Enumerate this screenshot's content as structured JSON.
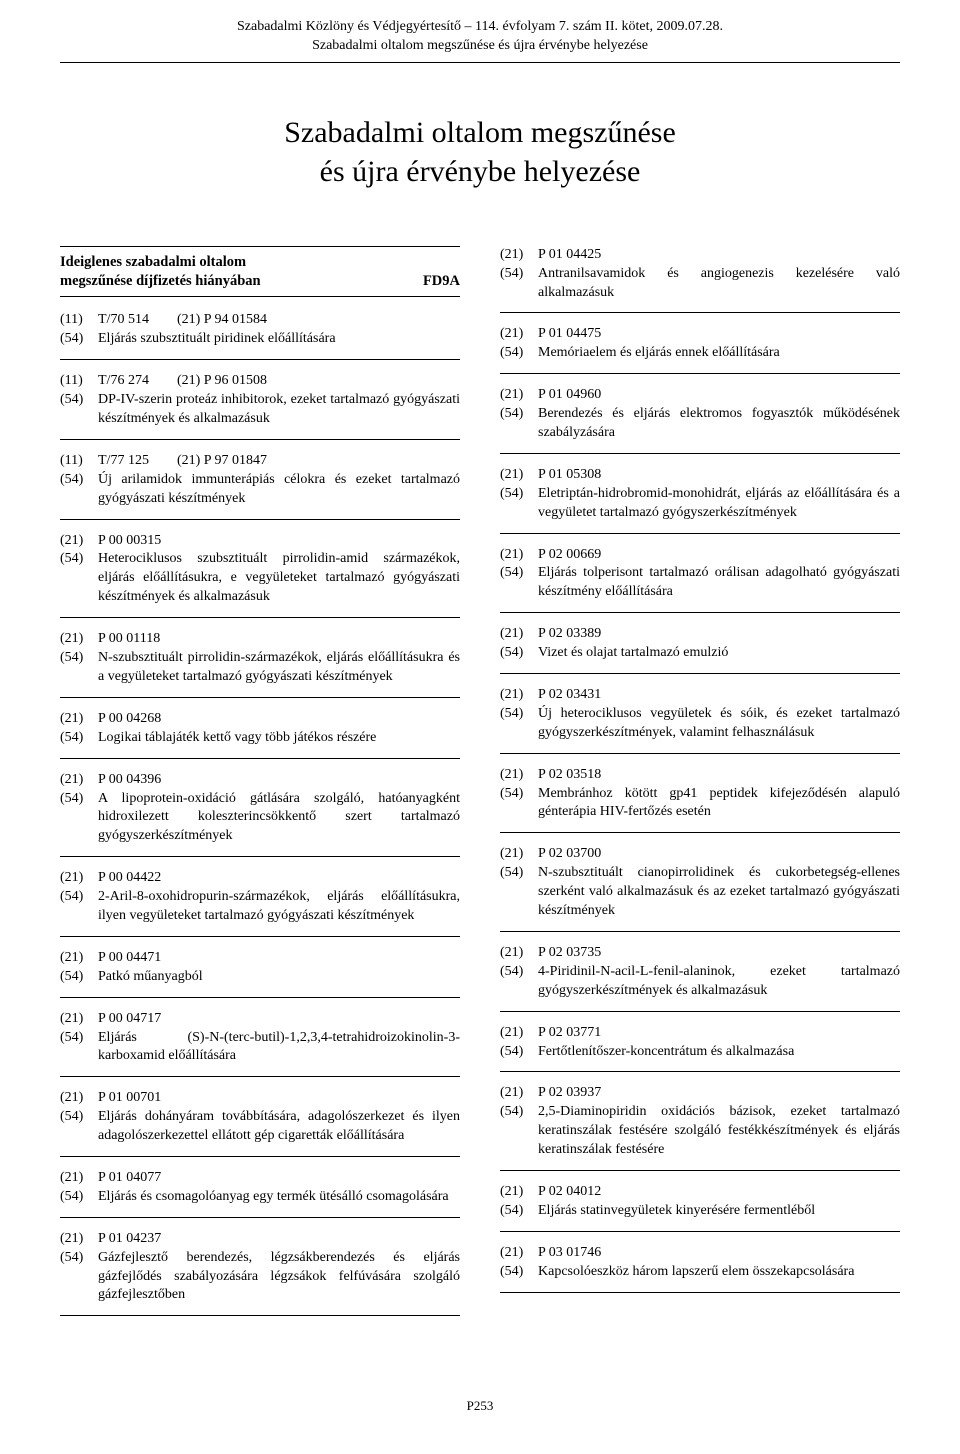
{
  "header": {
    "line1": "Szabadalmi Közlöny és Védjegyértesítő – 114. évfolyam 7. szám II. kötet, 2009.07.28.",
    "line2": "Szabadalmi oltalom megszűnése és újra érvénybe helyezése"
  },
  "title": {
    "line1": "Szabadalmi oltalom megszűnése",
    "line2": "és újra érvénybe helyezése"
  },
  "section": {
    "heading_line1": "Ideiglenes szabadalmi oltalom",
    "heading_line2": "megszűnése díjfizetés hiányában",
    "code": "FD9A"
  },
  "left": [
    {
      "rows": [
        {
          "c": "(11)",
          "v": "T/70 514",
          "c2": "(21)",
          "v2": "P 94 01584"
        },
        {
          "c": "(54)",
          "v": "Eljárás szubsztituált piridinek előállítására"
        }
      ]
    },
    {
      "rows": [
        {
          "c": "(11)",
          "v": "T/76 274",
          "c2": "(21)",
          "v2": "P 96 01508"
        },
        {
          "c": "(54)",
          "v": "DP-IV-szerin proteáz inhibitorok, ezeket tartalmazó gyógyászati készítmények és alkalmazásuk"
        }
      ]
    },
    {
      "rows": [
        {
          "c": "(11)",
          "v": "T/77 125",
          "c2": "(21)",
          "v2": "P 97 01847"
        },
        {
          "c": "(54)",
          "v": "Új arilamidok immunterápiás célokra és ezeket tartalmazó gyógyászati készítmények"
        }
      ]
    },
    {
      "rows": [
        {
          "c": "(21)",
          "v": "P 00 00315"
        },
        {
          "c": "(54)",
          "v": "Heterociklusos szubsztituált pirrolidin-amid származékok, eljárás előállításukra, e vegyületeket tartalmazó gyógyászati készítmények és alkalmazásuk"
        }
      ]
    },
    {
      "rows": [
        {
          "c": "(21)",
          "v": "P 00 01118"
        },
        {
          "c": "(54)",
          "v": "N-szubsztituált pirrolidin-származékok, eljárás előállításukra és a vegyületeket tartalmazó gyógyászati készítmények"
        }
      ]
    },
    {
      "rows": [
        {
          "c": "(21)",
          "v": "P 00 04268"
        },
        {
          "c": "(54)",
          "v": "Logikai táblajáték kettő vagy több játékos részére"
        }
      ]
    },
    {
      "rows": [
        {
          "c": "(21)",
          "v": "P 00 04396"
        },
        {
          "c": "(54)",
          "v": "A lipoprotein-oxidáció gátlására szolgáló, hatóanyagként hidroxilezett koleszterincsökkentő szert tartalmazó gyógyszerkészítmények"
        }
      ]
    },
    {
      "rows": [
        {
          "c": "(21)",
          "v": "P 00 04422"
        },
        {
          "c": "(54)",
          "v": "2-Aril-8-oxohidropurin-származékok, eljárás előállításukra, ilyen vegyületeket tartalmazó gyógyászati készítmények"
        }
      ]
    },
    {
      "rows": [
        {
          "c": "(21)",
          "v": "P 00 04471"
        },
        {
          "c": "(54)",
          "v": "Patkó műanyagból"
        }
      ]
    },
    {
      "rows": [
        {
          "c": "(21)",
          "v": "P 00 04717"
        },
        {
          "c": "(54)",
          "v": "Eljárás (S)-N-(terc-butil)-1,2,3,4-tetrahidroizokinolin-3-karboxamid előállítására"
        }
      ]
    },
    {
      "rows": [
        {
          "c": "(21)",
          "v": "P 01 00701"
        },
        {
          "c": "(54)",
          "v": "Eljárás dohányáram továbbítására, adagolószerkezet és ilyen adagolószerkezettel ellátott gép cigaretták előállítására"
        }
      ]
    },
    {
      "rows": [
        {
          "c": "(21)",
          "v": "P 01 04077"
        },
        {
          "c": "(54)",
          "v": "Eljárás és csomagolóanyag egy termék ütésálló csomagolására"
        }
      ]
    },
    {
      "rows": [
        {
          "c": "(21)",
          "v": "P 01 04237"
        },
        {
          "c": "(54)",
          "v": "Gázfejlesztő berendezés, légzsákberendezés és eljárás gázfejlődés szabályozására légzsákok felfúvására szolgáló gázfejlesztőben"
        }
      ]
    }
  ],
  "right": [
    {
      "rows": [
        {
          "c": "(21)",
          "v": "P 01 04425"
        },
        {
          "c": "(54)",
          "v": "Antranilsavamidok és angiogenezis kezelésére való alkalmazásuk"
        }
      ]
    },
    {
      "rows": [
        {
          "c": "(21)",
          "v": "P 01 04475"
        },
        {
          "c": "(54)",
          "v": "Memóriaelem és eljárás ennek előállítására"
        }
      ]
    },
    {
      "rows": [
        {
          "c": "(21)",
          "v": "P 01 04960"
        },
        {
          "c": "(54)",
          "v": "Berendezés és eljárás elektromos fogyasztók működésének szabályzására"
        }
      ]
    },
    {
      "rows": [
        {
          "c": "(21)",
          "v": "P 01 05308"
        },
        {
          "c": "(54)",
          "v": "Eletriptán-hidrobromid-monohidrát, eljárás az előállítására és a vegyületet tartalmazó gyógyszerkészítmények"
        }
      ]
    },
    {
      "rows": [
        {
          "c": "(21)",
          "v": "P 02 00669"
        },
        {
          "c": "(54)",
          "v": "Eljárás tolperisont tartalmazó orálisan adagolható gyógyászati készítmény előállítására"
        }
      ]
    },
    {
      "rows": [
        {
          "c": "(21)",
          "v": "P 02 03389"
        },
        {
          "c": "(54)",
          "v": "Vizet és olajat tartalmazó emulzió"
        }
      ]
    },
    {
      "rows": [
        {
          "c": "(21)",
          "v": "P 02 03431"
        },
        {
          "c": "(54)",
          "v": "Új heterociklusos vegyületek és sóik, és ezeket tartalmazó gyógyszerkészítmények, valamint felhasználásuk"
        }
      ]
    },
    {
      "rows": [
        {
          "c": "(21)",
          "v": "P 02 03518"
        },
        {
          "c": "(54)",
          "v": "Membránhoz kötött gp41 peptidek kifejeződésén alapuló génterápia HIV-fertőzés esetén"
        }
      ]
    },
    {
      "rows": [
        {
          "c": "(21)",
          "v": "P 02 03700"
        },
        {
          "c": "(54)",
          "v": "N-szubsztituált cianopirrolidinek és cukorbetegség-ellenes szerként való alkalmazásuk és az ezeket tartalmazó gyógyászati készítmények"
        }
      ]
    },
    {
      "rows": [
        {
          "c": "(21)",
          "v": "P 02 03735"
        },
        {
          "c": "(54)",
          "v": "4-Piridinil-N-acil-L-fenil-alaninok, ezeket tartalmazó gyógyszerkészítmények és alkalmazásuk"
        }
      ]
    },
    {
      "rows": [
        {
          "c": "(21)",
          "v": "P 02 03771"
        },
        {
          "c": "(54)",
          "v": "Fertőtlenítőszer-koncentrátum és alkalmazása"
        }
      ]
    },
    {
      "rows": [
        {
          "c": "(21)",
          "v": "P 02 03937"
        },
        {
          "c": "(54)",
          "v": "2,5-Diaminopiridin oxidációs bázisok, ezeket tartalmazó keratinszálak festésére szolgáló festékkészítmények és eljárás keratinszálak festésére"
        }
      ]
    },
    {
      "rows": [
        {
          "c": "(21)",
          "v": "P 02 04012"
        },
        {
          "c": "(54)",
          "v": "Eljárás statinvegyületek kinyerésére fermentléből"
        }
      ]
    },
    {
      "rows": [
        {
          "c": "(21)",
          "v": "P 03 01746"
        },
        {
          "c": "(54)",
          "v": "Kapcsolóeszköz három lapszerű elem összekapcsolására"
        }
      ]
    }
  ],
  "footer": "P253"
}
